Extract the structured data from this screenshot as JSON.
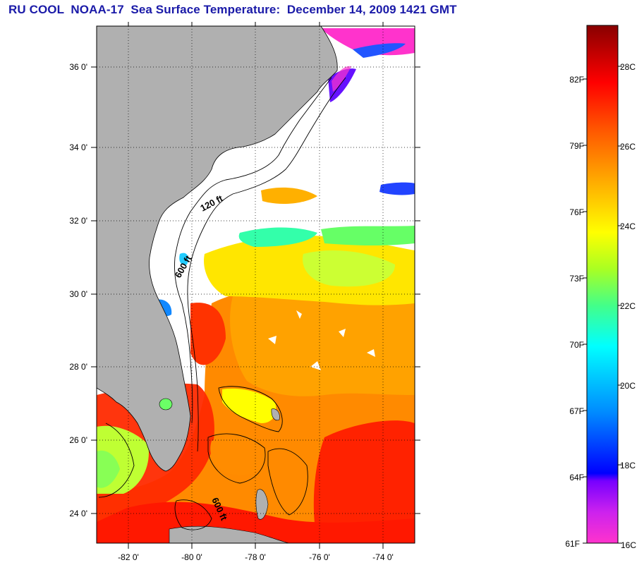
{
  "title": "RU COOL  NOAA-17  Sea Surface Temperature:  December 14, 2009 1421 GMT",
  "map": {
    "lon_range": [
      -83,
      -73
    ],
    "lat_range": [
      23,
      37
    ],
    "lon_ticks": [
      -82,
      -80,
      -78,
      -76,
      -74
    ],
    "lat_ticks": [
      24,
      26,
      28,
      30,
      32,
      34,
      36
    ],
    "lon_labels": [
      "-82 0'",
      "-80 0'",
      "-78 0'",
      "-76 0'",
      "-74 0'"
    ],
    "lat_labels": [
      "24 0'",
      "26 0'",
      "28 0'",
      "30 0'",
      "32 0'",
      "34 0'",
      "36 0'"
    ],
    "contour_labels": [
      "120 ft",
      "600 ft",
      "600 ft"
    ],
    "land_color": "#b0b0b0",
    "cloud_color": "#ffffff"
  },
  "colorbar": {
    "fahrenheit_labels": [
      "61F",
      "64F",
      "67F",
      "70F",
      "73F",
      "76F",
      "79F",
      "82F"
    ],
    "celsius_labels": [
      "16C",
      "18C",
      "20C",
      "22C",
      "24C",
      "26C",
      "28C"
    ],
    "colors": [
      "#ff33cc",
      "#aa00ff",
      "#0000ff",
      "#0088ff",
      "#00ffff",
      "#44ff88",
      "#aaff00",
      "#ffff00",
      "#ffaa00",
      "#ff5500",
      "#ff0000",
      "#880000"
    ]
  }
}
